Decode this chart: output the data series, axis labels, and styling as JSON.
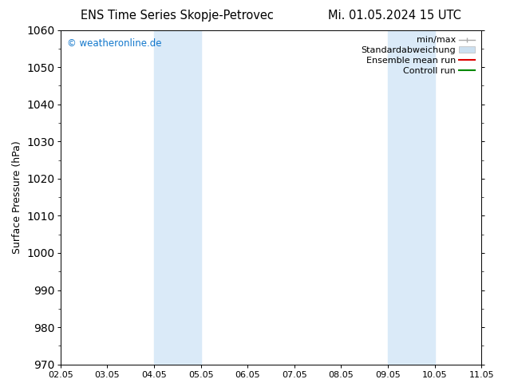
{
  "title_left": "ENS Time Series Skopje-Petrovec",
  "title_right": "Mi. 01.05.2024 15 UTC",
  "ylabel": "Surface Pressure (hPa)",
  "ylim": [
    970,
    1060
  ],
  "yticks": [
    970,
    980,
    990,
    1000,
    1010,
    1020,
    1030,
    1040,
    1050,
    1060
  ],
  "xlabels": [
    "02.05",
    "03.05",
    "04.05",
    "05.05",
    "06.05",
    "07.05",
    "08.05",
    "09.05",
    "10.05",
    "11.05"
  ],
  "watermark": "© weatheronline.de",
  "watermark_color": "#1177cc",
  "shaded_regions": [
    {
      "xstart": 2.0,
      "xend": 2.5,
      "color": "#daeaf8"
    },
    {
      "xstart": 2.5,
      "xend": 3.0,
      "color": "#daeaf8"
    },
    {
      "xstart": 7.0,
      "xend": 7.5,
      "color": "#daeaf8"
    },
    {
      "xstart": 7.5,
      "xend": 8.0,
      "color": "#daeaf8"
    }
  ],
  "legend_entries": [
    {
      "label": "min/max",
      "color": "#aaaaaa",
      "lw": 1.0,
      "type": "line_capped"
    },
    {
      "label": "Standardabweichung",
      "color": "#cce0f0",
      "lw": 8,
      "type": "patch"
    },
    {
      "label": "Ensemble mean run",
      "color": "#dd0000",
      "lw": 1.5,
      "type": "line"
    },
    {
      "label": "Controll run",
      "color": "#008800",
      "lw": 1.5,
      "type": "line"
    }
  ],
  "bg_color": "#ffffff",
  "plot_bg_color": "#ffffff",
  "spine_color": "#000000",
  "title_fontsize": 10.5,
  "label_fontsize": 9,
  "tick_fontsize": 8,
  "watermark_fontsize": 8.5,
  "legend_fontsize": 8
}
